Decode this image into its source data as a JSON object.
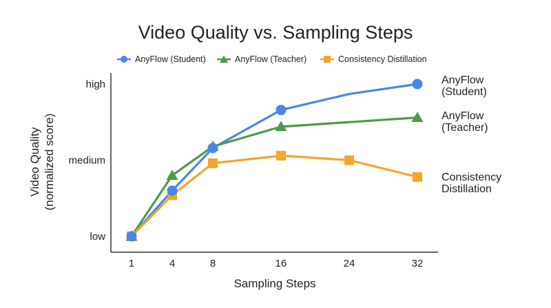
{
  "chart_data": {
    "type": "line",
    "title": "Video Quality vs. Sampling Steps",
    "xlabel": "Sampling Steps",
    "ylabel": [
      "Video Quality",
      "(normalized score)"
    ],
    "x_ticks": [
      "1",
      "4",
      "8",
      "16",
      "24",
      "32"
    ],
    "y_ticks": [
      {
        "label": "low",
        "value": 0
      },
      {
        "label": "medium",
        "value": 0.5
      },
      {
        "label": "high",
        "value": 1
      }
    ],
    "ylim": [
      0,
      1
    ],
    "grid": false,
    "legend_position": "top",
    "series": [
      {
        "name": "AnyFlow (Student)",
        "end_label": [
          "AnyFlow",
          "(Student)"
        ],
        "marker": "circle",
        "color": "#4a86e8",
        "x": [
          1,
          4,
          8,
          16,
          32
        ],
        "values": [
          0.0,
          0.3,
          0.58,
          0.83,
          1.0
        ],
        "curve_via": [
          {
            "x": 24,
            "value": 0.935
          }
        ]
      },
      {
        "name": "AnyFlow (Teacher)",
        "end_label": [
          "AnyFlow",
          "(Teacher)"
        ],
        "marker": "triangle",
        "color": "#4c9a4c",
        "x": [
          1,
          4,
          8,
          16,
          32
        ],
        "values": [
          0.0,
          0.4,
          0.59,
          0.72,
          0.78
        ]
      },
      {
        "name": "Consistency Distillation",
        "end_label": [
          "Consistency",
          "Distillation"
        ],
        "marker": "square",
        "color": "#f4a52c",
        "x": [
          1,
          4,
          8,
          16,
          24,
          32
        ],
        "values": [
          0.0,
          0.27,
          0.48,
          0.53,
          0.5,
          0.39
        ]
      }
    ]
  }
}
